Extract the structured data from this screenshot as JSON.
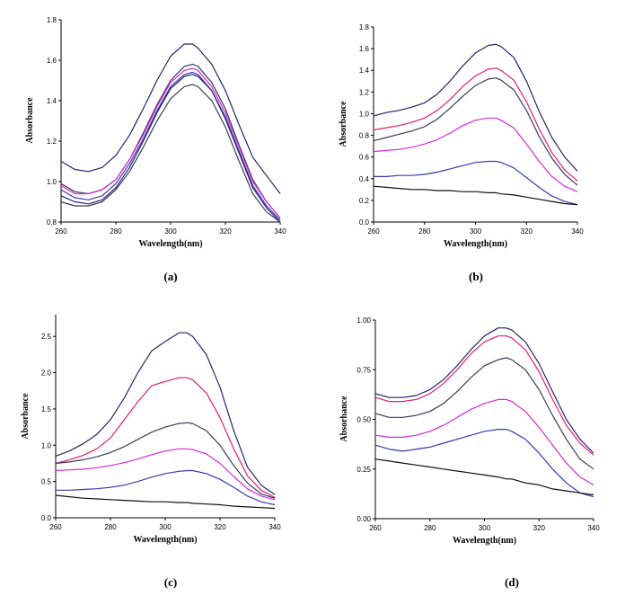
{
  "colors": {
    "navy": "#25256e",
    "blue": "#3a3ab0",
    "magenta": "#d62ad6",
    "pink": "#e0206e",
    "dark": "#3a3a5a",
    "black": "#111111"
  },
  "chart_data": [
    {
      "type": "line",
      "panel_label": "(a)",
      "xlabel": "Wavelength(nm)",
      "ylabel": "Absorbance",
      "xlim": [
        260,
        340
      ],
      "ylim": [
        0.8,
        1.8
      ],
      "xticks": [
        "260",
        "280",
        "300",
        "320",
        "340"
      ],
      "yticks": [
        "0.8",
        "1.0",
        "1.2",
        "1.4",
        "1.6",
        "1.8"
      ],
      "x": [
        260,
        265,
        270,
        275,
        280,
        285,
        290,
        295,
        300,
        305,
        308,
        310,
        315,
        320,
        325,
        330,
        335,
        340
      ],
      "series": [
        {
          "color": "navy",
          "values": [
            1.1,
            1.06,
            1.05,
            1.07,
            1.13,
            1.23,
            1.36,
            1.5,
            1.62,
            1.68,
            1.68,
            1.66,
            1.58,
            1.45,
            1.28,
            1.12,
            1.03,
            0.94
          ]
        },
        {
          "color": "dark",
          "values": [
            0.99,
            0.95,
            0.94,
            0.96,
            1.01,
            1.11,
            1.24,
            1.38,
            1.5,
            1.57,
            1.58,
            1.57,
            1.49,
            1.36,
            1.18,
            1.01,
            0.9,
            0.82
          ]
        },
        {
          "color": "magenta",
          "values": [
            0.98,
            0.94,
            0.94,
            0.96,
            1.01,
            1.11,
            1.23,
            1.37,
            1.49,
            1.55,
            1.56,
            1.55,
            1.47,
            1.34,
            1.17,
            1.0,
            0.9,
            0.82
          ]
        },
        {
          "color": "blue",
          "values": [
            0.96,
            0.92,
            0.91,
            0.93,
            0.99,
            1.09,
            1.21,
            1.35,
            1.47,
            1.53,
            1.54,
            1.53,
            1.45,
            1.32,
            1.15,
            0.98,
            0.88,
            0.81
          ]
        },
        {
          "color": "navy",
          "values": [
            0.93,
            0.9,
            0.89,
            0.91,
            0.97,
            1.07,
            1.2,
            1.34,
            1.46,
            1.52,
            1.53,
            1.52,
            1.45,
            1.31,
            1.14,
            0.97,
            0.87,
            0.8
          ]
        },
        {
          "color": "dark",
          "values": [
            0.9,
            0.88,
            0.88,
            0.9,
            0.96,
            1.05,
            1.17,
            1.3,
            1.41,
            1.47,
            1.48,
            1.47,
            1.4,
            1.27,
            1.1,
            0.94,
            0.85,
            0.8
          ]
        }
      ]
    },
    {
      "type": "line",
      "panel_label": "(b)",
      "xlabel": "Wavelength(nm)",
      "ylabel": "Absorbance",
      "xlim": [
        260,
        340
      ],
      "ylim": [
        0.0,
        1.8
      ],
      "xticks": [
        "260",
        "280",
        "300",
        "320",
        "340"
      ],
      "yticks": [
        "0.0",
        "0.2",
        "0.4",
        "0.6",
        "0.8",
        "1.0",
        "1.2",
        "1.4",
        "1.6",
        "1.8"
      ],
      "x": [
        260,
        265,
        270,
        275,
        280,
        285,
        290,
        295,
        300,
        305,
        308,
        310,
        315,
        320,
        325,
        330,
        335,
        340
      ],
      "series": [
        {
          "color": "navy",
          "values": [
            0.98,
            1.01,
            1.03,
            1.06,
            1.1,
            1.18,
            1.3,
            1.44,
            1.56,
            1.63,
            1.64,
            1.62,
            1.52,
            1.3,
            1.02,
            0.78,
            0.6,
            0.47
          ]
        },
        {
          "color": "pink",
          "values": [
            0.85,
            0.87,
            0.89,
            0.92,
            0.96,
            1.03,
            1.13,
            1.25,
            1.35,
            1.41,
            1.42,
            1.4,
            1.31,
            1.11,
            0.86,
            0.64,
            0.48,
            0.38
          ]
        },
        {
          "color": "dark",
          "values": [
            0.75,
            0.78,
            0.81,
            0.84,
            0.88,
            0.95,
            1.05,
            1.16,
            1.26,
            1.32,
            1.33,
            1.31,
            1.22,
            1.03,
            0.79,
            0.59,
            0.44,
            0.34
          ]
        },
        {
          "color": "magenta",
          "values": [
            0.65,
            0.66,
            0.67,
            0.69,
            0.72,
            0.76,
            0.82,
            0.89,
            0.94,
            0.96,
            0.96,
            0.94,
            0.87,
            0.72,
            0.56,
            0.42,
            0.33,
            0.28
          ]
        },
        {
          "color": "blue",
          "values": [
            0.42,
            0.42,
            0.43,
            0.43,
            0.44,
            0.46,
            0.49,
            0.52,
            0.55,
            0.56,
            0.56,
            0.55,
            0.5,
            0.41,
            0.32,
            0.24,
            0.19,
            0.16
          ]
        },
        {
          "color": "black",
          "values": [
            0.33,
            0.32,
            0.31,
            0.3,
            0.3,
            0.29,
            0.29,
            0.28,
            0.28,
            0.27,
            0.27,
            0.26,
            0.25,
            0.23,
            0.21,
            0.19,
            0.17,
            0.16
          ]
        }
      ]
    },
    {
      "type": "line",
      "panel_label": "(c)",
      "xlabel": "Wavelength(nm)",
      "ylabel": "Absorbance",
      "xlim": [
        260,
        340
      ],
      "ylim": [
        0.0,
        2.8
      ],
      "xticks": [
        "260",
        "280",
        "300",
        "320",
        "340"
      ],
      "yticks": [
        "0.0",
        "0.5",
        "1.0",
        "1.5",
        "2.0",
        "2.5"
      ],
      "x": [
        260,
        265,
        270,
        275,
        280,
        285,
        290,
        295,
        300,
        305,
        308,
        310,
        315,
        320,
        325,
        330,
        335,
        340
      ],
      "series": [
        {
          "color": "navy",
          "values": [
            0.85,
            0.92,
            1.02,
            1.15,
            1.35,
            1.65,
            2.0,
            2.3,
            2.43,
            2.55,
            2.55,
            2.5,
            2.25,
            1.8,
            1.2,
            0.7,
            0.45,
            0.32
          ]
        },
        {
          "color": "pink",
          "values": [
            0.75,
            0.8,
            0.86,
            0.95,
            1.1,
            1.35,
            1.6,
            1.82,
            1.88,
            1.93,
            1.93,
            1.9,
            1.72,
            1.38,
            0.95,
            0.58,
            0.38,
            0.28
          ]
        },
        {
          "color": "dark",
          "values": [
            0.75,
            0.77,
            0.8,
            0.84,
            0.9,
            0.98,
            1.08,
            1.18,
            1.25,
            1.3,
            1.31,
            1.3,
            1.2,
            1.0,
            0.72,
            0.48,
            0.33,
            0.27
          ]
        },
        {
          "color": "magenta",
          "values": [
            0.65,
            0.66,
            0.67,
            0.69,
            0.72,
            0.76,
            0.81,
            0.87,
            0.92,
            0.95,
            0.95,
            0.94,
            0.88,
            0.75,
            0.57,
            0.4,
            0.3,
            0.25
          ]
        },
        {
          "color": "blue",
          "values": [
            0.38,
            0.38,
            0.39,
            0.4,
            0.42,
            0.45,
            0.5,
            0.56,
            0.61,
            0.64,
            0.65,
            0.65,
            0.61,
            0.53,
            0.42,
            0.3,
            0.22,
            0.18
          ]
        },
        {
          "color": "black",
          "values": [
            0.31,
            0.29,
            0.27,
            0.26,
            0.25,
            0.24,
            0.23,
            0.22,
            0.22,
            0.21,
            0.21,
            0.2,
            0.19,
            0.18,
            0.16,
            0.15,
            0.14,
            0.13
          ]
        }
      ]
    },
    {
      "type": "line",
      "panel_label": "(d)",
      "xlabel": "Wavelength(nm)",
      "ylabel": "Absorbance",
      "xlim": [
        260,
        340
      ],
      "ylim": [
        0.0,
        1.0
      ],
      "xticks": [
        "260",
        "280",
        "300",
        "320",
        "340"
      ],
      "yticks": [
        "0.00",
        "0.25",
        "0.50",
        "0.75",
        "1.00"
      ],
      "x": [
        260,
        265,
        270,
        275,
        280,
        285,
        290,
        295,
        300,
        305,
        308,
        310,
        315,
        320,
        325,
        330,
        335,
        340
      ],
      "series": [
        {
          "color": "navy",
          "values": [
            0.63,
            0.61,
            0.61,
            0.62,
            0.65,
            0.7,
            0.77,
            0.85,
            0.92,
            0.96,
            0.96,
            0.95,
            0.89,
            0.78,
            0.64,
            0.5,
            0.4,
            0.33
          ]
        },
        {
          "color": "pink",
          "values": [
            0.61,
            0.59,
            0.59,
            0.6,
            0.63,
            0.68,
            0.75,
            0.83,
            0.89,
            0.92,
            0.92,
            0.91,
            0.85,
            0.74,
            0.6,
            0.47,
            0.38,
            0.32
          ]
        },
        {
          "color": "dark",
          "values": [
            0.53,
            0.51,
            0.51,
            0.52,
            0.54,
            0.58,
            0.64,
            0.71,
            0.77,
            0.8,
            0.81,
            0.8,
            0.75,
            0.65,
            0.52,
            0.4,
            0.3,
            0.25
          ]
        },
        {
          "color": "magenta",
          "values": [
            0.42,
            0.41,
            0.41,
            0.42,
            0.44,
            0.47,
            0.51,
            0.55,
            0.58,
            0.6,
            0.6,
            0.59,
            0.54,
            0.46,
            0.37,
            0.28,
            0.21,
            0.17
          ]
        },
        {
          "color": "blue",
          "values": [
            0.37,
            0.35,
            0.34,
            0.35,
            0.36,
            0.38,
            0.4,
            0.42,
            0.44,
            0.45,
            0.45,
            0.44,
            0.4,
            0.33,
            0.25,
            0.18,
            0.13,
            0.11
          ]
        },
        {
          "color": "black",
          "values": [
            0.3,
            0.29,
            0.28,
            0.27,
            0.26,
            0.25,
            0.24,
            0.23,
            0.22,
            0.21,
            0.2,
            0.2,
            0.18,
            0.17,
            0.15,
            0.14,
            0.13,
            0.12
          ]
        }
      ]
    }
  ]
}
